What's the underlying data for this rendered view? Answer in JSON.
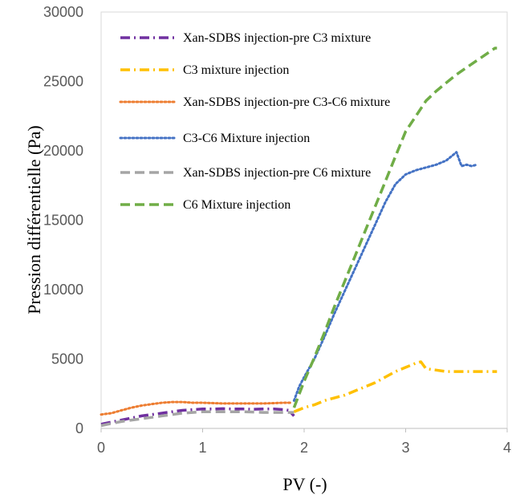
{
  "chart_data": {
    "type": "line",
    "title": "",
    "xlabel": "PV (-)",
    "ylabel": "Pression différentielle (Pa)",
    "xlim": [
      0,
      4
    ],
    "ylim": [
      0,
      30000
    ],
    "xticks": [
      "0",
      "1",
      "2",
      "3",
      "4"
    ],
    "yticks": [
      "0",
      "5000",
      "10000",
      "15000",
      "20000",
      "25000",
      "30000"
    ],
    "grid": false,
    "legend_placement": "top-left",
    "series": [
      {
        "name": "Xan-SDBS injection-pre C3 mixture",
        "color": "#7030A0",
        "dash": "dash-dot",
        "x": [
          0.0,
          0.1,
          0.2,
          0.3,
          0.4,
          0.5,
          0.6,
          0.7,
          0.8,
          0.9,
          1.0,
          1.1,
          1.2,
          1.3,
          1.4,
          1.5,
          1.6,
          1.7,
          1.8,
          1.85,
          1.9
        ],
        "y": [
          300,
          450,
          600,
          750,
          900,
          1000,
          1100,
          1200,
          1300,
          1350,
          1400,
          1400,
          1420,
          1400,
          1400,
          1380,
          1400,
          1400,
          1350,
          1300,
          900
        ]
      },
      {
        "name": "C3 mixture injection",
        "color": "#FFC000",
        "dash": "dash-dot",
        "x": [
          1.9,
          2.0,
          2.1,
          2.2,
          2.3,
          2.4,
          2.5,
          2.6,
          2.7,
          2.8,
          2.9,
          3.0,
          3.1,
          3.15,
          3.2,
          3.3,
          3.4,
          3.5,
          3.6,
          3.7,
          3.8,
          3.9
        ],
        "y": [
          1200,
          1500,
          1700,
          2000,
          2200,
          2400,
          2700,
          3000,
          3300,
          3700,
          4100,
          4400,
          4700,
          4800,
          4300,
          4200,
          4100,
          4100,
          4100,
          4100,
          4100,
          4100
        ]
      },
      {
        "name": "Xan-SDBS injection-pre C3-C6 mixture",
        "color": "#ED7D31",
        "dash": "dot",
        "x": [
          0.0,
          0.1,
          0.2,
          0.3,
          0.4,
          0.5,
          0.6,
          0.7,
          0.8,
          0.9,
          1.0,
          1.2,
          1.4,
          1.6,
          1.8,
          1.88
        ],
        "y": [
          1000,
          1100,
          1300,
          1500,
          1650,
          1750,
          1850,
          1900,
          1900,
          1850,
          1850,
          1800,
          1800,
          1800,
          1850,
          1850
        ]
      },
      {
        "name": "C3-C6 Mixture injection",
        "color": "#4472C4",
        "dash": "dot",
        "x": [
          1.9,
          1.95,
          2.0,
          2.1,
          2.2,
          2.3,
          2.4,
          2.5,
          2.6,
          2.7,
          2.8,
          2.9,
          3.0,
          3.1,
          3.2,
          3.3,
          3.4,
          3.5,
          3.55,
          3.6,
          3.65,
          3.7
        ],
        "y": [
          2000,
          3000,
          3700,
          5000,
          6600,
          8300,
          9900,
          11500,
          13100,
          14700,
          16300,
          17600,
          18300,
          18600,
          18800,
          19000,
          19300,
          19900,
          18900,
          19000,
          18900,
          19000
        ]
      },
      {
        "name": "Xan-SDBS injection-pre C6 mixture",
        "color": "#A5A5A5",
        "dash": "dash",
        "x": [
          0.0,
          0.1,
          0.2,
          0.3,
          0.4,
          0.5,
          0.6,
          0.7,
          0.8,
          0.9,
          1.0,
          1.2,
          1.4,
          1.6,
          1.8,
          1.9
        ],
        "y": [
          200,
          350,
          500,
          600,
          700,
          800,
          900,
          1000,
          1100,
          1150,
          1200,
          1200,
          1200,
          1150,
          1150,
          1150
        ]
      },
      {
        "name": "C6 Mixture injection",
        "color": "#70AD47",
        "dash": "dash",
        "x": [
          1.9,
          2.0,
          2.1,
          2.2,
          2.3,
          2.4,
          2.5,
          2.6,
          2.7,
          2.8,
          2.9,
          3.0,
          3.1,
          3.2,
          3.3,
          3.4,
          3.5,
          3.6,
          3.7,
          3.8,
          3.88,
          3.9
        ],
        "y": [
          1500,
          3400,
          5100,
          6900,
          8800,
          10600,
          12400,
          14200,
          16000,
          17800,
          19600,
          21400,
          22500,
          23600,
          24300,
          24900,
          25500,
          26000,
          26500,
          27000,
          27400,
          27400
        ]
      }
    ]
  }
}
